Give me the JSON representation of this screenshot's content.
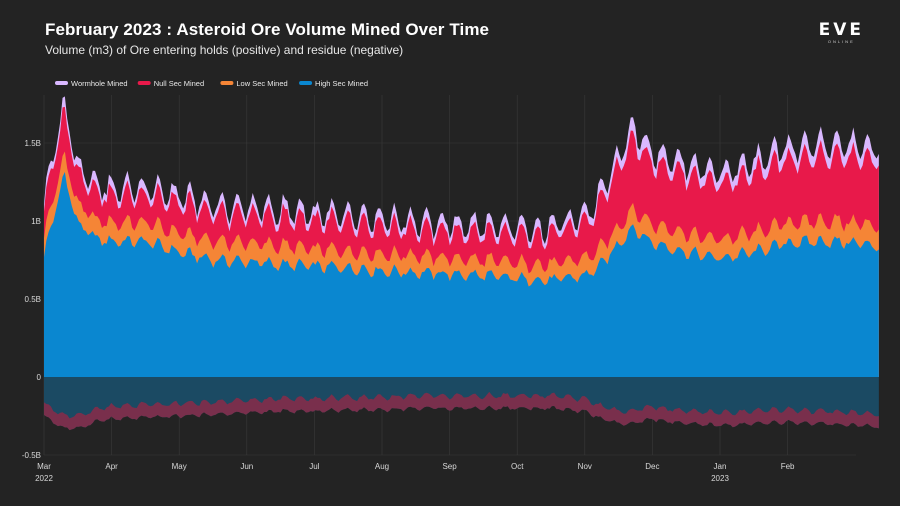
{
  "header": {
    "title": "February 2023 : Asteroid Ore Volume Mined Over Time",
    "subtitle": "Volume (m3) of Ore entering holds (positive) and residue (negative)",
    "logo_text": "EVE",
    "logo_subtext": "ONLINE"
  },
  "colors": {
    "background": "#232323",
    "wormhole": "#d9b8ff",
    "null_sec": "#e8194a",
    "low_sec": "#f58536",
    "high_sec": "#0a87d0",
    "residue_high": "#1b4a63",
    "residue_null": "#8a2a48",
    "grid": "#3a3a3a"
  },
  "chart_data": {
    "type": "area",
    "stacked": true,
    "title": "February 2023 : Asteroid Ore Volume Mined Over Time",
    "subtitle": "Volume (m3) of Ore entering holds (positive) and residue (negative)",
    "xlabel": "",
    "ylabel": "",
    "ylim": [
      -0.5,
      1.9
    ],
    "y_ticks": [
      {
        "value": 1.5,
        "label": "1.5B"
      },
      {
        "value": 1.0,
        "label": "1B"
      },
      {
        "value": 0.5,
        "label": "0.5B"
      },
      {
        "value": 0,
        "label": "0"
      },
      {
        "value": -0.5,
        "label": "-0.5B"
      }
    ],
    "x_ticks": [
      {
        "label": "Mar",
        "sublabel": "2022"
      },
      {
        "label": "Apr",
        "sublabel": ""
      },
      {
        "label": "May",
        "sublabel": ""
      },
      {
        "label": "Jun",
        "sublabel": ""
      },
      {
        "label": "Jul",
        "sublabel": ""
      },
      {
        "label": "Aug",
        "sublabel": ""
      },
      {
        "label": "Sep",
        "sublabel": ""
      },
      {
        "label": "Oct",
        "sublabel": ""
      },
      {
        "label": "Nov",
        "sublabel": ""
      },
      {
        "label": "Dec",
        "sublabel": ""
      },
      {
        "label": "Jan",
        "sublabel": "2023"
      },
      {
        "label": "Feb",
        "sublabel": ""
      }
    ],
    "x_range_months": [
      0,
      12.35
    ],
    "legend": [
      "Wormhole Mined",
      "Null Sec Mined",
      "Low Sec Mined",
      "High Sec Mined"
    ],
    "legend_position": "top-left",
    "series": [
      {
        "name": "High Sec Mined",
        "color": "#0a87d0",
        "x": [
          0,
          0.3,
          0.5,
          0.8,
          1.0,
          1.5,
          2.0,
          2.5,
          3.0,
          3.5,
          4.0,
          4.5,
          5.0,
          5.5,
          6.0,
          6.5,
          7.0,
          7.5,
          8.0,
          8.2,
          8.5,
          8.7,
          9.0,
          9.5,
          10.0,
          10.5,
          11.0,
          11.5,
          12.0,
          12.35
        ],
        "values": [
          0.78,
          1.3,
          0.98,
          0.88,
          0.87,
          0.87,
          0.8,
          0.75,
          0.74,
          0.72,
          0.71,
          0.7,
          0.68,
          0.67,
          0.66,
          0.65,
          0.63,
          0.62,
          0.65,
          0.7,
          0.85,
          0.96,
          0.86,
          0.8,
          0.76,
          0.8,
          0.86,
          0.87,
          0.86,
          0.84
        ]
      },
      {
        "name": "Low Sec Mined",
        "color": "#f58536",
        "x": [
          0,
          0.3,
          0.5,
          0.8,
          1.0,
          1.5,
          2.0,
          2.5,
          3.0,
          3.5,
          4.0,
          4.5,
          5.0,
          5.5,
          6.0,
          6.5,
          7.0,
          7.5,
          8.0,
          8.2,
          8.5,
          8.7,
          9.0,
          9.5,
          10.0,
          10.5,
          11.0,
          11.5,
          12.0,
          12.35
        ],
        "values": [
          0.13,
          0.12,
          0.12,
          0.12,
          0.12,
          0.12,
          0.12,
          0.12,
          0.12,
          0.12,
          0.11,
          0.11,
          0.11,
          0.11,
          0.1,
          0.1,
          0.1,
          0.1,
          0.11,
          0.11,
          0.11,
          0.12,
          0.12,
          0.12,
          0.12,
          0.12,
          0.13,
          0.13,
          0.13,
          0.13
        ]
      },
      {
        "name": "Null Sec Mined",
        "color": "#e8194a",
        "x": [
          0,
          0.3,
          0.5,
          0.8,
          1.0,
          1.5,
          2.0,
          2.5,
          3.0,
          3.5,
          4.0,
          4.5,
          5.0,
          5.5,
          6.0,
          6.5,
          7.0,
          7.5,
          8.0,
          8.2,
          8.5,
          8.7,
          9.0,
          9.5,
          10.0,
          10.5,
          11.0,
          11.5,
          12.0,
          12.35
        ],
        "values": [
          0.18,
          0.28,
          0.2,
          0.18,
          0.17,
          0.18,
          0.19,
          0.18,
          0.18,
          0.18,
          0.18,
          0.18,
          0.17,
          0.17,
          0.17,
          0.17,
          0.18,
          0.19,
          0.22,
          0.28,
          0.4,
          0.45,
          0.4,
          0.38,
          0.36,
          0.38,
          0.4,
          0.42,
          0.42,
          0.42
        ]
      },
      {
        "name": "Wormhole Mined",
        "color": "#d9b8ff",
        "x": [
          0,
          0.3,
          0.5,
          0.8,
          1.0,
          1.5,
          2.0,
          2.5,
          3.0,
          3.5,
          4.0,
          4.5,
          5.0,
          5.5,
          6.0,
          6.5,
          7.0,
          7.5,
          8.0,
          8.2,
          8.5,
          8.7,
          9.0,
          9.5,
          10.0,
          10.5,
          11.0,
          11.5,
          12.0,
          12.35
        ],
        "values": [
          0.05,
          0.06,
          0.05,
          0.05,
          0.05,
          0.05,
          0.05,
          0.05,
          0.05,
          0.05,
          0.05,
          0.05,
          0.05,
          0.05,
          0.05,
          0.05,
          0.05,
          0.05,
          0.05,
          0.06,
          0.07,
          0.08,
          0.07,
          0.07,
          0.07,
          0.07,
          0.08,
          0.08,
          0.08,
          0.08
        ]
      },
      {
        "name": "Residue (negative)",
        "color": "#1b4a63",
        "x": [
          0,
          0.3,
          0.5,
          0.8,
          1.0,
          1.5,
          2.0,
          2.5,
          3.0,
          3.5,
          4.0,
          4.5,
          5.0,
          5.5,
          6.0,
          6.5,
          7.0,
          7.5,
          8.0,
          8.2,
          8.5,
          8.7,
          9.0,
          9.5,
          10.0,
          10.5,
          11.0,
          11.5,
          12.0,
          12.35
        ],
        "values": [
          -0.25,
          -0.33,
          -0.33,
          -0.28,
          -0.27,
          -0.26,
          -0.25,
          -0.24,
          -0.23,
          -0.22,
          -0.22,
          -0.21,
          -0.21,
          -0.2,
          -0.2,
          -0.2,
          -0.2,
          -0.2,
          -0.22,
          -0.26,
          -0.3,
          -0.3,
          -0.27,
          -0.3,
          -0.31,
          -0.3,
          -0.29,
          -0.3,
          -0.31,
          -0.32
        ]
      }
    ]
  }
}
